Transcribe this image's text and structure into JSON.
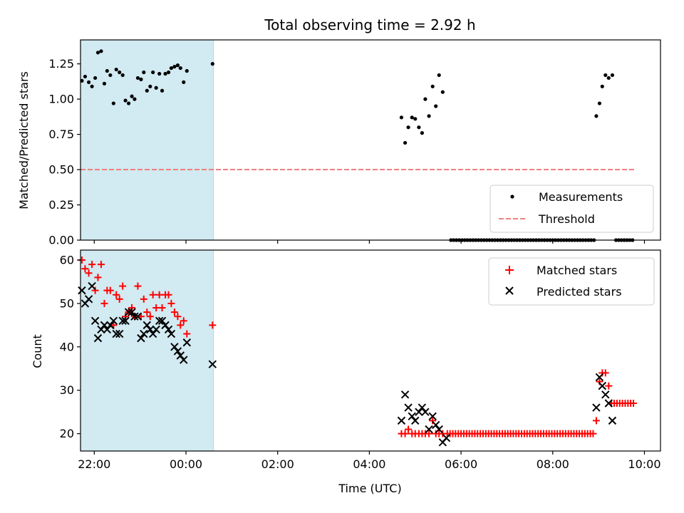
{
  "chart_data": [
    {
      "type": "scatter",
      "title": "Total observing time = 2.92 h",
      "ylabel": "Matched/Predicted stars",
      "xlabel": "",
      "xlim": [
        -2.3,
        10.35
      ],
      "ylim": [
        0,
        1.42
      ],
      "yticks": [
        0.0,
        0.25,
        0.5,
        0.75,
        1.0,
        1.25
      ],
      "ytick_labels": [
        "0.00",
        "0.25",
        "0.50",
        "0.75",
        "1.00",
        "1.25"
      ],
      "xticks": [
        -2,
        0,
        2,
        4,
        6,
        8,
        10
      ],
      "xtick_labels": [
        "",
        "",
        "",
        "",
        "",
        "",
        ""
      ],
      "shaded_region": {
        "x0": -2.3,
        "x1": 0.6,
        "color": "#add8e6"
      },
      "legend": {
        "position": "bottom-right",
        "entries": [
          "Measurements",
          "Threshold"
        ]
      },
      "threshold": {
        "name": "Threshold",
        "y": 0.5,
        "x0": -2.3,
        "x1": 9.8,
        "color": "#f08080"
      },
      "series": [
        {
          "name": "Measurements",
          "color": "#000000",
          "points": [
            [
              -2.27,
              1.13
            ],
            [
              -2.2,
              1.16
            ],
            [
              -2.12,
              1.12
            ],
            [
              -2.05,
              1.09
            ],
            [
              -1.98,
              1.15
            ],
            [
              -1.92,
              1.33
            ],
            [
              -1.85,
              1.34
            ],
            [
              -1.78,
              1.11
            ],
            [
              -1.72,
              1.2
            ],
            [
              -1.65,
              1.17
            ],
            [
              -1.58,
              0.97
            ],
            [
              -1.52,
              1.21
            ],
            [
              -1.45,
              1.19
            ],
            [
              -1.38,
              1.17
            ],
            [
              -1.32,
              0.99
            ],
            [
              -1.25,
              0.97
            ],
            [
              -1.18,
              1.02
            ],
            [
              -1.12,
              1.0
            ],
            [
              -1.05,
              1.15
            ],
            [
              -0.98,
              1.14
            ],
            [
              -0.92,
              1.19
            ],
            [
              -0.85,
              1.06
            ],
            [
              -0.78,
              1.09
            ],
            [
              -0.72,
              1.19
            ],
            [
              -0.65,
              1.08
            ],
            [
              -0.58,
              1.18
            ],
            [
              -0.52,
              1.06
            ],
            [
              -0.45,
              1.18
            ],
            [
              -0.38,
              1.19
            ],
            [
              -0.32,
              1.22
            ],
            [
              -0.25,
              1.23
            ],
            [
              -0.18,
              1.24
            ],
            [
              -0.12,
              1.22
            ],
            [
              -0.05,
              1.12
            ],
            [
              0.02,
              1.2
            ],
            [
              0.58,
              1.25
            ],
            [
              4.7,
              0.87
            ],
            [
              4.78,
              0.69
            ],
            [
              4.85,
              0.8
            ],
            [
              4.93,
              0.87
            ],
            [
              5.0,
              0.86
            ],
            [
              5.08,
              0.8
            ],
            [
              5.15,
              0.76
            ],
            [
              5.22,
              1.0
            ],
            [
              5.3,
              0.88
            ],
            [
              5.38,
              1.09
            ],
            [
              5.45,
              0.95
            ],
            [
              5.52,
              1.17
            ],
            [
              5.6,
              1.05
            ],
            [
              8.95,
              0.88
            ],
            [
              9.02,
              0.97
            ],
            [
              9.08,
              1.09
            ],
            [
              9.15,
              1.17
            ],
            [
              9.22,
              1.15
            ],
            [
              9.3,
              1.17
            ]
          ]
        },
        {
          "name": "Zero measurements",
          "color": "#000000",
          "x_start": 5.78,
          "x_end": 8.9,
          "x_step": 0.06,
          "y": 0,
          "x2_start": 9.38,
          "x2_end": 9.78,
          "x2_step": 0.06
        }
      ]
    },
    {
      "type": "scatter",
      "title": "",
      "xlabel": "Time (UTC)",
      "ylabel": "Count",
      "xlim": [
        -2.3,
        10.35
      ],
      "ylim": [
        16,
        62.3
      ],
      "yticks": [
        20,
        30,
        40,
        50,
        60
      ],
      "ytick_labels": [
        "20",
        "30",
        "40",
        "50",
        "60"
      ],
      "xticks": [
        -2,
        0,
        2,
        4,
        6,
        8,
        10
      ],
      "xtick_labels": [
        "22:00",
        "00:00",
        "02:00",
        "04:00",
        "06:00",
        "08:00",
        "10:00"
      ],
      "shaded_region": {
        "x0": -2.3,
        "x1": 0.6,
        "color": "#add8e6"
      },
      "legend": {
        "position": "top-right",
        "entries": [
          "Matched stars",
          "Predicted stars"
        ]
      },
      "series": [
        {
          "name": "Matched stars",
          "marker": "+",
          "color": "#ff0000",
          "points": [
            [
              -2.27,
              60
            ],
            [
              -2.2,
              58
            ],
            [
              -2.12,
              57
            ],
            [
              -2.05,
              59
            ],
            [
              -1.98,
              53
            ],
            [
              -1.92,
              56
            ],
            [
              -1.85,
              59
            ],
            [
              -1.78,
              50
            ],
            [
              -1.72,
              53
            ],
            [
              -1.65,
              53
            ],
            [
              -1.58,
              45
            ],
            [
              -1.52,
              52
            ],
            [
              -1.45,
              51
            ],
            [
              -1.38,
              54
            ],
            [
              -1.32,
              47
            ],
            [
              -1.25,
              48
            ],
            [
              -1.18,
              49
            ],
            [
              -1.12,
              47
            ],
            [
              -1.05,
              54
            ],
            [
              -0.98,
              47
            ],
            [
              -0.92,
              51
            ],
            [
              -0.85,
              48
            ],
            [
              -0.78,
              47
            ],
            [
              -0.72,
              52
            ],
            [
              -0.65,
              49
            ],
            [
              -0.58,
              52
            ],
            [
              -0.52,
              49
            ],
            [
              -0.45,
              52
            ],
            [
              -0.38,
              52
            ],
            [
              -0.32,
              50
            ],
            [
              -0.25,
              48
            ],
            [
              -0.18,
              47
            ],
            [
              -0.12,
              45
            ],
            [
              -0.05,
              46
            ],
            [
              0.02,
              43
            ],
            [
              0.58,
              45
            ],
            [
              4.7,
              20
            ],
            [
              4.78,
              20
            ],
            [
              4.85,
              21
            ],
            [
              4.93,
              20
            ],
            [
              5.0,
              20
            ],
            [
              5.08,
              20
            ],
            [
              5.15,
              20
            ],
            [
              5.22,
              20
            ],
            [
              5.3,
              20
            ],
            [
              5.38,
              23
            ],
            [
              5.45,
              20
            ],
            [
              5.52,
              20
            ],
            [
              5.6,
              20
            ],
            [
              8.95,
              23
            ],
            [
              9.02,
              32
            ],
            [
              9.08,
              34
            ],
            [
              9.15,
              34
            ],
            [
              9.22,
              31
            ]
          ],
          "flat_runs": [
            {
              "x_start": 5.7,
              "x_end": 8.9,
              "x_step": 0.06,
              "y": 20
            },
            {
              "x_start": 9.28,
              "x_end": 9.78,
              "x_step": 0.06,
              "y": 27
            }
          ]
        },
        {
          "name": "Predicted stars",
          "marker": "x",
          "color": "#000000",
          "points": [
            [
              -2.27,
              53
            ],
            [
              -2.2,
              50
            ],
            [
              -2.12,
              51
            ],
            [
              -2.05,
              54
            ],
            [
              -1.98,
              46
            ],
            [
              -1.92,
              42
            ],
            [
              -1.85,
              44
            ],
            [
              -1.78,
              45
            ],
            [
              -1.72,
              44
            ],
            [
              -1.65,
              45
            ],
            [
              -1.58,
              46
            ],
            [
              -1.52,
              43
            ],
            [
              -1.45,
              43
            ],
            [
              -1.38,
              46
            ],
            [
              -1.32,
              46
            ],
            [
              -1.25,
              48
            ],
            [
              -1.18,
              48
            ],
            [
              -1.12,
              47
            ],
            [
              -1.05,
              47
            ],
            [
              -0.98,
              42
            ],
            [
              -0.92,
              43
            ],
            [
              -0.85,
              45
            ],
            [
              -0.78,
              44
            ],
            [
              -0.72,
              43
            ],
            [
              -0.65,
              44
            ],
            [
              -0.58,
              46
            ],
            [
              -0.52,
              46
            ],
            [
              -0.45,
              45
            ],
            [
              -0.38,
              44
            ],
            [
              -0.32,
              43
            ],
            [
              -0.25,
              40
            ],
            [
              -0.18,
              39
            ],
            [
              -0.12,
              38
            ],
            [
              -0.05,
              37
            ],
            [
              0.02,
              41
            ],
            [
              0.58,
              36
            ],
            [
              4.7,
              23
            ],
            [
              4.78,
              29
            ],
            [
              4.85,
              26
            ],
            [
              4.93,
              24
            ],
            [
              5.0,
              23
            ],
            [
              5.08,
              25
            ],
            [
              5.15,
              26
            ],
            [
              5.22,
              25
            ],
            [
              5.3,
              21
            ],
            [
              5.38,
              24
            ],
            [
              5.45,
              22
            ],
            [
              5.52,
              21
            ],
            [
              5.6,
              18
            ],
            [
              5.68,
              19
            ],
            [
              8.95,
              26
            ],
            [
              9.02,
              33
            ],
            [
              9.08,
              31
            ],
            [
              9.15,
              29
            ],
            [
              9.22,
              27
            ],
            [
              9.3,
              23
            ]
          ]
        }
      ]
    }
  ]
}
